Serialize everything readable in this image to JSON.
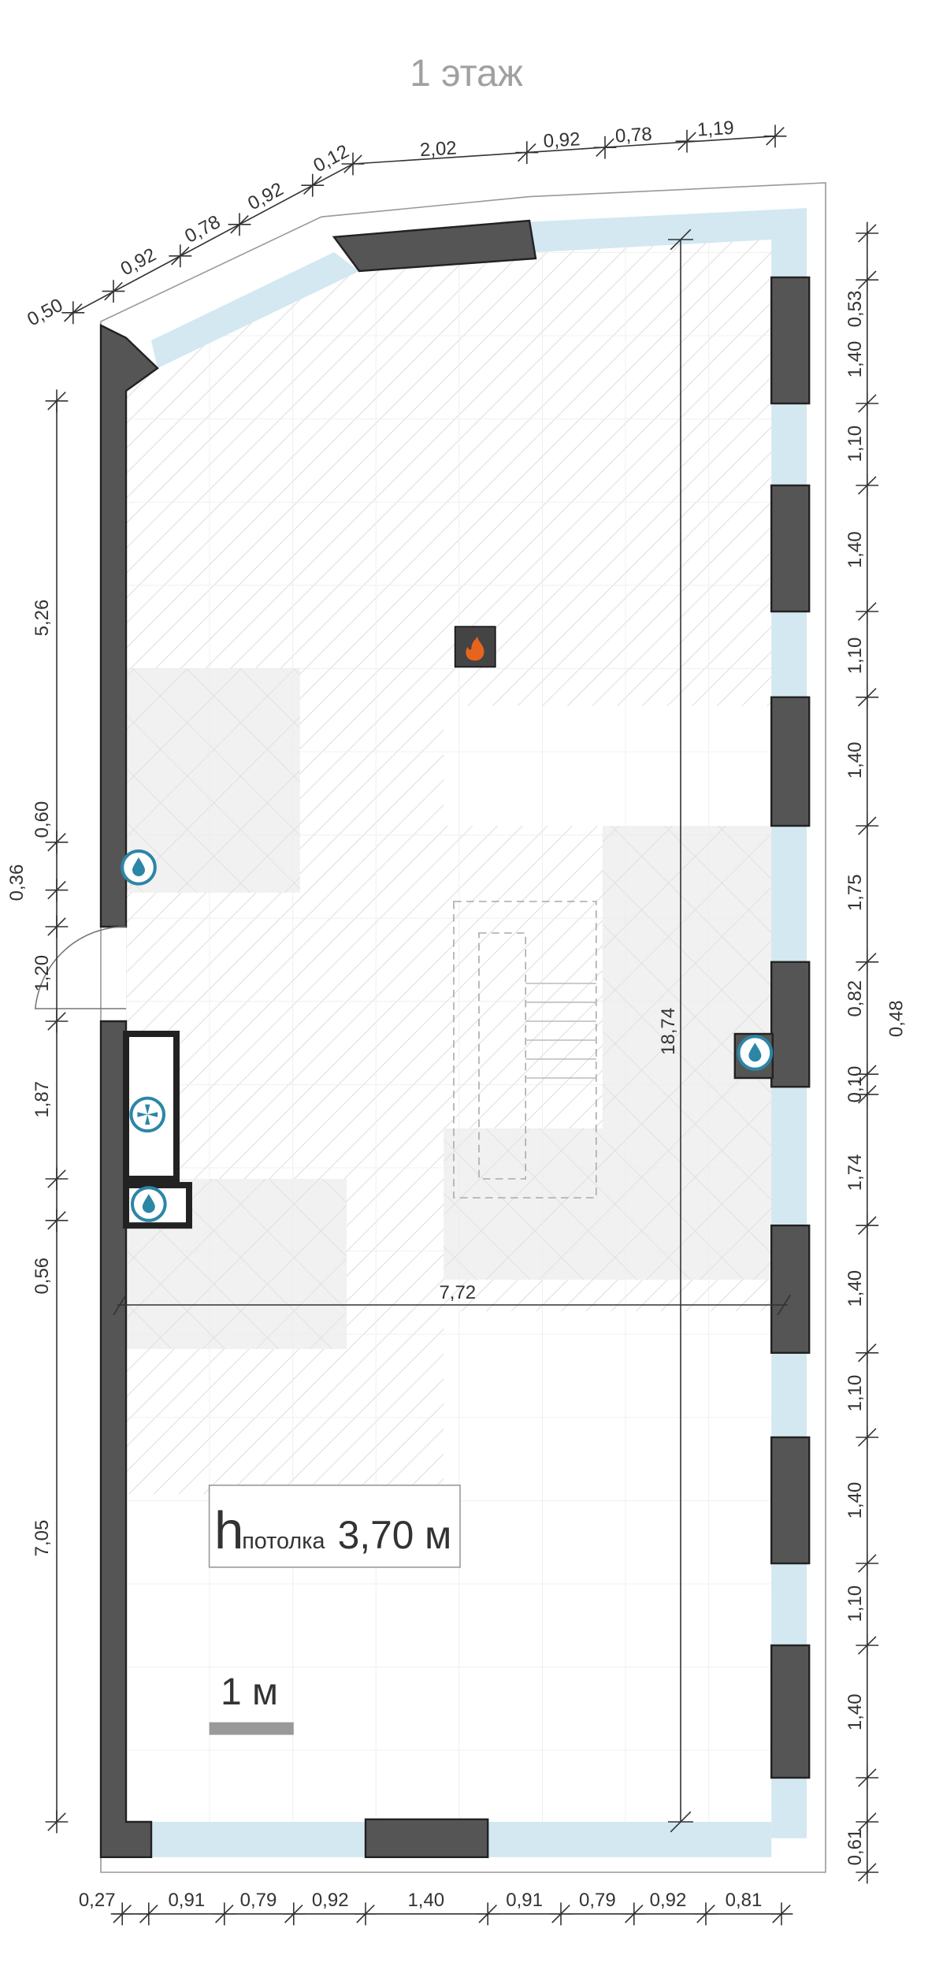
{
  "title": "1 этаж",
  "dimensions": {
    "top": [
      "0,50",
      "0,92",
      "0,78",
      "0,92",
      "0,12",
      "2,02",
      "0,92",
      "0,78",
      "1,19"
    ],
    "right": [
      "0,53",
      "1,40",
      "1,10",
      "1,40",
      "1,10",
      "1,40",
      "1,75",
      "0,82",
      "0,10",
      "1,74",
      "1,40",
      "1,10",
      "1,40",
      "1,10",
      "1,40",
      "0,61"
    ],
    "right_extra": "0,48",
    "left": [
      "5,26",
      "0,60",
      "0,36",
      "1,20",
      "1,87",
      "0,56",
      "7,05"
    ],
    "bottom": [
      "0,27",
      "0,91",
      "0,79",
      "0,92",
      "1,40",
      "0,91",
      "0,79",
      "0,92",
      "0,81"
    ],
    "inner_height": "18,74",
    "inner_width": "7,72"
  },
  "ceiling": {
    "symbol": "h",
    "subscript": "потолка",
    "value": "3,70 м"
  },
  "scale": {
    "label": "1 м"
  }
}
